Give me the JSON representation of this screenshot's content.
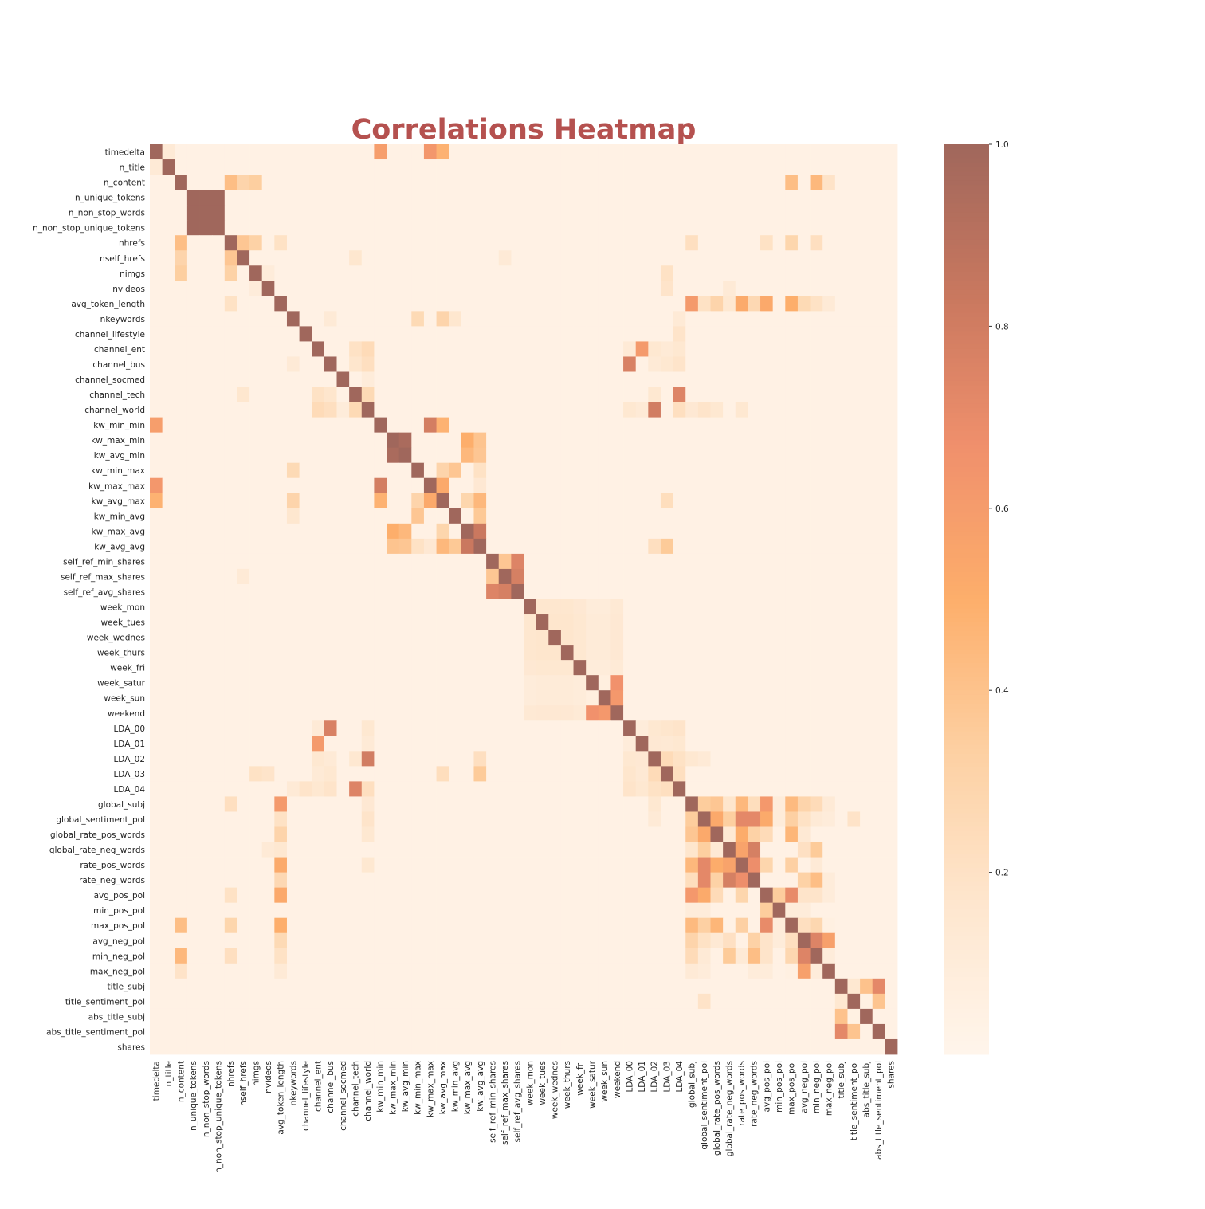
{
  "chart_data": {
    "type": "heatmap",
    "title": "Correlations Heatmap",
    "title_color": "#b5514f",
    "value_kind": "absolute correlation",
    "labels": [
      "timedelta",
      "n_title",
      "n_content",
      "n_unique_tokens",
      "n_non_stop_words",
      "n_non_stop_unique_tokens",
      "nhrefs",
      "nself_hrefs",
      "nimgs",
      "nvideos",
      "avg_token_length",
      "nkeywords",
      "channel_lifestyle",
      "channel_ent",
      "channel_bus",
      "channel_socmed",
      "channel_tech",
      "channel_world",
      "kw_min_min",
      "kw_max_min",
      "kw_avg_min",
      "kw_min_max",
      "kw_max_max",
      "kw_avg_max",
      "kw_min_avg",
      "kw_max_avg",
      "kw_avg_avg",
      "self_ref_min_shares",
      "self_ref_max_shares",
      "self_ref_avg_shares",
      "week_mon",
      "week_tues",
      "week_wednes",
      "week_thurs",
      "week_fri",
      "week_satur",
      "week_sun",
      "weekend",
      "LDA_00",
      "LDA_01",
      "LDA_02",
      "LDA_03",
      "LDA_04",
      "global_subj",
      "global_sentiment_pol",
      "global_rate_pos_words",
      "global_rate_neg_words",
      "rate_pos_words",
      "rate_neg_words",
      "avg_pos_pol",
      "min_pos_pol",
      "max_pos_pol",
      "avg_neg_pol",
      "min_neg_pol",
      "max_neg_pol",
      "title_subj",
      "title_sentiment_pol",
      "abs_title_subj",
      "abs_title_sentiment_pol",
      "shares"
    ],
    "cells": [
      [
        "timedelta",
        "n_title",
        0.12
      ],
      [
        "timedelta",
        "kw_min_min",
        0.59
      ],
      [
        "timedelta",
        "kw_max_max",
        0.63
      ],
      [
        "timedelta",
        "kw_avg_max",
        0.48
      ],
      [
        "n_content",
        "nhrefs",
        0.42
      ],
      [
        "n_content",
        "nself_hrefs",
        0.3
      ],
      [
        "n_content",
        "nimgs",
        0.34
      ],
      [
        "n_content",
        "max_pos_pol",
        0.42
      ],
      [
        "n_content",
        "min_neg_pol",
        0.45
      ],
      [
        "n_content",
        "max_neg_pol",
        0.19
      ],
      [
        "n_unique_tokens",
        "n_non_stop_words",
        1.0
      ],
      [
        "n_unique_tokens",
        "n_non_stop_unique_tokens",
        1.0
      ],
      [
        "n_non_stop_words",
        "n_non_stop_unique_tokens",
        1.0
      ],
      [
        "nhrefs",
        "nself_hrefs",
        0.38
      ],
      [
        "nhrefs",
        "nimgs",
        0.32
      ],
      [
        "nhrefs",
        "avg_token_length",
        0.2
      ],
      [
        "nhrefs",
        "global_subj",
        0.22
      ],
      [
        "nhrefs",
        "max_pos_pol",
        0.29
      ],
      [
        "nhrefs",
        "avg_pos_pol",
        0.2
      ],
      [
        "nhrefs",
        "min_neg_pol",
        0.22
      ],
      [
        "nself_hrefs",
        "self_ref_max_shares",
        0.12
      ],
      [
        "nself_hrefs",
        "channel_tech",
        0.16
      ],
      [
        "nimgs",
        "nvideos",
        0.1
      ],
      [
        "nimgs",
        "LDA_03",
        0.2
      ],
      [
        "nvideos",
        "LDA_03",
        0.18
      ],
      [
        "nvideos",
        "global_rate_neg_words",
        0.12
      ],
      [
        "avg_token_length",
        "global_subj",
        0.61
      ],
      [
        "avg_token_length",
        "global_sentiment_pol",
        0.2
      ],
      [
        "avg_token_length",
        "global_rate_pos_words",
        0.3
      ],
      [
        "avg_token_length",
        "rate_pos_words",
        0.52
      ],
      [
        "avg_token_length",
        "rate_neg_words",
        0.27
      ],
      [
        "avg_token_length",
        "avg_pos_pol",
        0.53
      ],
      [
        "avg_token_length",
        "max_pos_pol",
        0.5
      ],
      [
        "avg_token_length",
        "avg_neg_pol",
        0.26
      ],
      [
        "avg_token_length",
        "min_neg_pol",
        0.2
      ],
      [
        "avg_token_length",
        "global_rate_neg_words",
        0.15
      ],
      [
        "avg_token_length",
        "max_neg_pol",
        0.12
      ],
      [
        "nkeywords",
        "kw_min_max",
        0.26
      ],
      [
        "nkeywords",
        "kw_avg_max",
        0.3
      ],
      [
        "nkeywords",
        "kw_min_avg",
        0.16
      ],
      [
        "nkeywords",
        "channel_bus",
        0.12
      ],
      [
        "nkeywords",
        "LDA_04",
        0.12
      ],
      [
        "channel_lifestyle",
        "LDA_04",
        0.18
      ],
      [
        "channel_ent",
        "channel_tech",
        0.2
      ],
      [
        "channel_ent",
        "channel_world",
        0.25
      ],
      [
        "channel_ent",
        "LDA_01",
        0.61
      ],
      [
        "channel_ent",
        "LDA_00",
        0.12
      ],
      [
        "channel_ent",
        "LDA_02",
        0.15
      ],
      [
        "channel_ent",
        "LDA_03",
        0.12
      ],
      [
        "channel_ent",
        "LDA_04",
        0.15
      ],
      [
        "channel_bus",
        "channel_tech",
        0.17
      ],
      [
        "channel_bus",
        "channel_world",
        0.22
      ],
      [
        "channel_bus",
        "LDA_00",
        0.77
      ],
      [
        "channel_bus",
        "LDA_02",
        0.12
      ],
      [
        "channel_bus",
        "LDA_03",
        0.15
      ],
      [
        "channel_bus",
        "LDA_04",
        0.18
      ],
      [
        "channel_socmed",
        "channel_world",
        0.1
      ],
      [
        "channel_tech",
        "channel_world",
        0.26
      ],
      [
        "channel_tech",
        "LDA_04",
        0.75
      ],
      [
        "channel_tech",
        "LDA_02",
        0.15
      ],
      [
        "channel_world",
        "LDA_02",
        0.8
      ],
      [
        "channel_world",
        "LDA_04",
        0.22
      ],
      [
        "channel_world",
        "global_subj",
        0.14
      ],
      [
        "channel_world",
        "global_sentiment_pol",
        0.18
      ],
      [
        "channel_world",
        "global_rate_pos_words",
        0.15
      ],
      [
        "channel_world",
        "rate_pos_words",
        0.15
      ],
      [
        "channel_world",
        "LDA_00",
        0.15
      ],
      [
        "channel_world",
        "LDA_01",
        0.12
      ],
      [
        "kw_min_min",
        "kw_max_max",
        0.79
      ],
      [
        "kw_min_min",
        "kw_avg_max",
        0.48
      ],
      [
        "kw_max_min",
        "kw_avg_min",
        0.96
      ],
      [
        "kw_max_min",
        "kw_max_avg",
        0.5
      ],
      [
        "kw_max_min",
        "kw_avg_avg",
        0.39
      ],
      [
        "kw_avg_min",
        "kw_max_avg",
        0.45
      ],
      [
        "kw_avg_min",
        "kw_avg_avg",
        0.38
      ],
      [
        "kw_min_max",
        "kw_avg_max",
        0.3
      ],
      [
        "kw_min_max",
        "kw_min_avg",
        0.38
      ],
      [
        "kw_min_max",
        "kw_avg_avg",
        0.2
      ],
      [
        "kw_max_max",
        "kw_avg_max",
        0.53
      ],
      [
        "kw_max_max",
        "kw_avg_avg",
        0.14
      ],
      [
        "kw_avg_max",
        "kw_max_avg",
        0.29
      ],
      [
        "kw_avg_max",
        "kw_avg_avg",
        0.45
      ],
      [
        "kw_avg_max",
        "LDA_03",
        0.23
      ],
      [
        "kw_min_avg",
        "kw_avg_avg",
        0.37
      ],
      [
        "kw_max_avg",
        "kw_avg_avg",
        0.83
      ],
      [
        "kw_avg_avg",
        "LDA_03",
        0.36
      ],
      [
        "kw_avg_avg",
        "LDA_02",
        0.22
      ],
      [
        "self_ref_min_shares",
        "self_ref_max_shares",
        0.38
      ],
      [
        "self_ref_min_shares",
        "self_ref_avg_shares",
        0.75
      ],
      [
        "self_ref_max_shares",
        "self_ref_avg_shares",
        0.78
      ],
      [
        "week_mon",
        "week_tues",
        0.16
      ],
      [
        "week_mon",
        "week_wednes",
        0.16
      ],
      [
        "week_mon",
        "week_thurs",
        0.16
      ],
      [
        "week_mon",
        "week_fri",
        0.14
      ],
      [
        "week_mon",
        "week_satur",
        0.1
      ],
      [
        "week_mon",
        "week_sun",
        0.1
      ],
      [
        "week_mon",
        "weekend",
        0.13
      ],
      [
        "week_tues",
        "week_wednes",
        0.17
      ],
      [
        "week_tues",
        "week_thurs",
        0.17
      ],
      [
        "week_tues",
        "week_fri",
        0.15
      ],
      [
        "week_tues",
        "week_satur",
        0.11
      ],
      [
        "week_tues",
        "week_sun",
        0.11
      ],
      [
        "week_tues",
        "weekend",
        0.14
      ],
      [
        "week_wednes",
        "week_thurs",
        0.17
      ],
      [
        "week_wednes",
        "week_fri",
        0.15
      ],
      [
        "week_wednes",
        "week_satur",
        0.11
      ],
      [
        "week_wednes",
        "week_sun",
        0.11
      ],
      [
        "week_wednes",
        "weekend",
        0.14
      ],
      [
        "week_thurs",
        "week_fri",
        0.15
      ],
      [
        "week_thurs",
        "week_satur",
        0.11
      ],
      [
        "week_thurs",
        "week_sun",
        0.11
      ],
      [
        "week_thurs",
        "weekend",
        0.14
      ],
      [
        "week_fri",
        "week_satur",
        0.1
      ],
      [
        "week_fri",
        "week_sun",
        0.1
      ],
      [
        "week_fri",
        "weekend",
        0.12
      ],
      [
        "week_satur",
        "week_sun",
        0.07
      ],
      [
        "week_satur",
        "weekend",
        0.66
      ],
      [
        "week_sun",
        "weekend",
        0.62
      ],
      [
        "LDA_00",
        "LDA_01",
        0.1
      ],
      [
        "LDA_00",
        "LDA_02",
        0.15
      ],
      [
        "LDA_00",
        "LDA_03",
        0.17
      ],
      [
        "LDA_00",
        "LDA_04",
        0.18
      ],
      [
        "LDA_01",
        "LDA_02",
        0.14
      ],
      [
        "LDA_01",
        "LDA_03",
        0.13
      ],
      [
        "LDA_01",
        "LDA_04",
        0.15
      ],
      [
        "LDA_02",
        "LDA_03",
        0.25
      ],
      [
        "LDA_02",
        "LDA_04",
        0.2
      ],
      [
        "LDA_02",
        "global_subj",
        0.15
      ],
      [
        "LDA_02",
        "global_sentiment_pol",
        0.12
      ],
      [
        "LDA_03",
        "LDA_04",
        0.22
      ],
      [
        "global_subj",
        "global_sentiment_pol",
        0.35
      ],
      [
        "global_subj",
        "global_rate_pos_words",
        0.38
      ],
      [
        "global_subj",
        "global_rate_neg_words",
        0.17
      ],
      [
        "global_subj",
        "rate_pos_words",
        0.45
      ],
      [
        "global_subj",
        "rate_neg_words",
        0.23
      ],
      [
        "global_subj",
        "avg_pos_pol",
        0.62
      ],
      [
        "global_subj",
        "min_pos_pol",
        0.1
      ],
      [
        "global_subj",
        "max_pos_pol",
        0.44
      ],
      [
        "global_subj",
        "avg_neg_pol",
        0.3
      ],
      [
        "global_subj",
        "min_neg_pol",
        0.25
      ],
      [
        "global_subj",
        "max_neg_pol",
        0.12
      ],
      [
        "global_sentiment_pol",
        "global_rate_pos_words",
        0.53
      ],
      [
        "global_sentiment_pol",
        "global_rate_neg_words",
        0.34
      ],
      [
        "global_sentiment_pol",
        "rate_pos_words",
        0.72
      ],
      [
        "global_sentiment_pol",
        "rate_neg_words",
        0.72
      ],
      [
        "global_sentiment_pol",
        "avg_pos_pol",
        0.52
      ],
      [
        "global_sentiment_pol",
        "min_pos_pol",
        0.1
      ],
      [
        "global_sentiment_pol",
        "max_pos_pol",
        0.33
      ],
      [
        "global_sentiment_pol",
        "avg_neg_pol",
        0.2
      ],
      [
        "global_sentiment_pol",
        "min_neg_pol",
        0.12
      ],
      [
        "global_sentiment_pol",
        "max_neg_pol",
        0.1
      ],
      [
        "global_sentiment_pol",
        "title_sentiment_pol",
        0.19
      ],
      [
        "global_rate_pos_words",
        "global_rate_neg_words",
        0.13
      ],
      [
        "global_rate_pos_words",
        "rate_pos_words",
        0.51
      ],
      [
        "global_rate_pos_words",
        "rate_neg_words",
        0.32
      ],
      [
        "global_rate_pos_words",
        "avg_pos_pol",
        0.25
      ],
      [
        "global_rate_pos_words",
        "max_pos_pol",
        0.46
      ],
      [
        "global_rate_pos_words",
        "avg_neg_pol",
        0.13
      ],
      [
        "global_rate_neg_words",
        "rate_pos_words",
        0.56
      ],
      [
        "global_rate_neg_words",
        "rate_neg_words",
        0.78
      ],
      [
        "global_rate_neg_words",
        "avg_neg_pol",
        0.21
      ],
      [
        "global_rate_neg_words",
        "min_neg_pol",
        0.36
      ],
      [
        "rate_pos_words",
        "rate_neg_words",
        0.68
      ],
      [
        "rate_pos_words",
        "avg_pos_pol",
        0.29
      ],
      [
        "rate_pos_words",
        "max_pos_pol",
        0.33
      ],
      [
        "rate_pos_words",
        "avg_neg_pol",
        0.04
      ],
      [
        "rate_pos_words",
        "min_neg_pol",
        0.12
      ],
      [
        "rate_neg_words",
        "avg_neg_pol",
        0.32
      ],
      [
        "rate_neg_words",
        "min_neg_pol",
        0.42
      ],
      [
        "rate_neg_words",
        "max_neg_pol",
        0.1
      ],
      [
        "avg_pos_pol",
        "min_pos_pol",
        0.35
      ],
      [
        "avg_pos_pol",
        "max_pos_pol",
        0.7
      ],
      [
        "avg_pos_pol",
        "avg_neg_pol",
        0.18
      ],
      [
        "avg_pos_pol",
        "min_neg_pol",
        0.18
      ],
      [
        "avg_pos_pol",
        "max_neg_pol",
        0.1
      ],
      [
        "min_pos_pol",
        "max_pos_pol",
        0.1
      ],
      [
        "min_pos_pol",
        "avg_neg_pol",
        0.1
      ],
      [
        "max_pos_pol",
        "avg_neg_pol",
        0.22
      ],
      [
        "max_pos_pol",
        "min_neg_pol",
        0.28
      ],
      [
        "max_pos_pol",
        "max_neg_pol",
        0.06
      ],
      [
        "avg_neg_pol",
        "min_neg_pol",
        0.75
      ],
      [
        "avg_neg_pol",
        "max_neg_pol",
        0.58
      ],
      [
        "min_neg_pol",
        "max_neg_pol",
        0.1
      ],
      [
        "title_subj",
        "title_sentiment_pol",
        0.15
      ],
      [
        "title_subj",
        "abs_title_subj",
        0.4
      ],
      [
        "title_subj",
        "abs_title_sentiment_pol",
        0.72
      ],
      [
        "title_sentiment_pol",
        "abs_title_subj",
        0.05
      ],
      [
        "title_sentiment_pol",
        "abs_title_sentiment_pol",
        0.39
      ]
    ],
    "default_value": 0.04,
    "vmin": 0.0,
    "vmax": 1.0,
    "colorbar": {
      "ticks": [
        0.2,
        0.4,
        0.6,
        0.8,
        1.0
      ],
      "tick_labels": [
        "0.2",
        "0.4",
        "0.6",
        "0.8",
        "1.0"
      ]
    },
    "colormap": [
      "#fff5eb",
      "#fee6ce",
      "#fdd0a2",
      "#fdae6b",
      "#f0906c",
      "#c9785f",
      "#a0675c"
    ],
    "colormap_note": "Oranges with dark muted-brown high end, alpha blended",
    "grid": false,
    "legend_position": "right"
  }
}
